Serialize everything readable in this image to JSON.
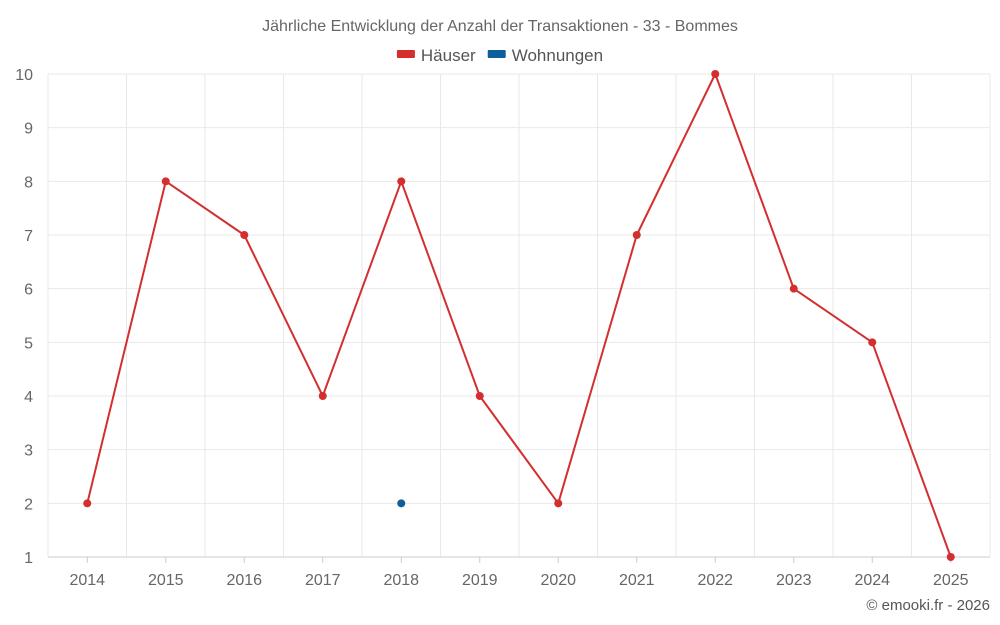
{
  "chart_data": {
    "type": "line",
    "title": "Jährliche Entwicklung der Anzahl der Transaktionen - 33 - Bommes",
    "categories": [
      "2014",
      "2015",
      "2016",
      "2017",
      "2018",
      "2019",
      "2020",
      "2021",
      "2022",
      "2023",
      "2024",
      "2025"
    ],
    "series": [
      {
        "name": "Häuser",
        "color": "#d32f2f",
        "values": [
          2,
          8,
          7,
          4,
          8,
          4,
          2,
          7,
          10,
          6,
          5,
          1
        ]
      },
      {
        "name": "Wohnungen",
        "color": "#0d5f99",
        "values": [
          null,
          null,
          null,
          null,
          2,
          null,
          null,
          null,
          null,
          null,
          null,
          null
        ]
      }
    ],
    "ylim": [
      1,
      10
    ],
    "yticks": [
      "1",
      "2",
      "3",
      "4",
      "5",
      "6",
      "7",
      "8",
      "9",
      "10"
    ],
    "grid": true,
    "legend_position": "top-center",
    "credit": "© emooki.fr - 2026"
  }
}
